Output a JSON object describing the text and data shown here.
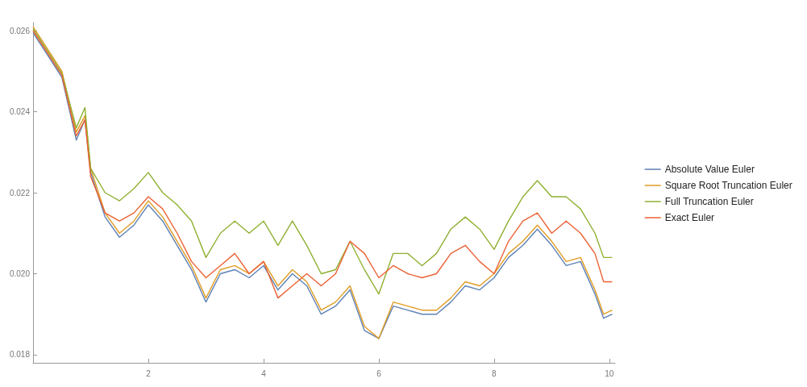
{
  "chart_data": {
    "type": "line",
    "x": [
      0,
      0.25,
      0.5,
      0.75,
      0.9,
      1,
      1.25,
      1.5,
      1.75,
      2,
      2.25,
      2.5,
      2.75,
      3,
      3.25,
      3.5,
      3.75,
      4,
      4.25,
      4.5,
      4.75,
      5,
      5.25,
      5.5,
      5.75,
      6,
      6.25,
      6.5,
      6.75,
      7,
      7.25,
      7.5,
      7.75,
      8,
      8.25,
      8.5,
      8.75,
      9,
      9.25,
      9.5,
      9.75,
      9.9,
      10.05
    ],
    "series": [
      {
        "name": "Absolute Value Euler",
        "color": "#5e81b5",
        "values": [
          0.02595,
          0.0254,
          0.02485,
          0.0233,
          0.0238,
          0.0225,
          0.0214,
          0.0209,
          0.0212,
          0.0217,
          0.0213,
          0.0207,
          0.0201,
          0.0193,
          0.02,
          0.0201,
          0.0199,
          0.0202,
          0.0196,
          0.02,
          0.0197,
          0.019,
          0.0192,
          0.0196,
          0.0186,
          0.0184,
          0.0192,
          0.0191,
          0.019,
          0.019,
          0.0193,
          0.0197,
          0.0196,
          0.0199,
          0.0204,
          0.0207,
          0.0211,
          0.0207,
          0.0202,
          0.0203,
          0.0195,
          0.0189,
          0.019
        ]
      },
      {
        "name": "Square Root Truncation Euler",
        "color": "#e19c24",
        "values": [
          0.0261,
          0.02555,
          0.025,
          0.0235,
          0.0239,
          0.0226,
          0.0215,
          0.021,
          0.0213,
          0.0218,
          0.0214,
          0.0208,
          0.0202,
          0.0194,
          0.0201,
          0.0202,
          0.02,
          0.0203,
          0.0197,
          0.0201,
          0.0198,
          0.0191,
          0.0193,
          0.0197,
          0.0187,
          0.0184,
          0.0193,
          0.0192,
          0.0191,
          0.0191,
          0.0194,
          0.0198,
          0.0197,
          0.02,
          0.0205,
          0.0208,
          0.0212,
          0.0208,
          0.0203,
          0.0204,
          0.0196,
          0.019,
          0.0191
        ]
      },
      {
        "name": "Full Truncation Euler",
        "color": "#8fb032",
        "values": [
          0.02605,
          0.0255,
          0.02495,
          0.0236,
          0.0241,
          0.0226,
          0.022,
          0.0218,
          0.0221,
          0.0225,
          0.022,
          0.0217,
          0.0213,
          0.0204,
          0.021,
          0.0213,
          0.021,
          0.0213,
          0.0207,
          0.0213,
          0.0207,
          0.02,
          0.0201,
          0.0208,
          0.0201,
          0.0195,
          0.0205,
          0.0205,
          0.0202,
          0.0205,
          0.0211,
          0.0214,
          0.0211,
          0.0206,
          0.0213,
          0.0219,
          0.0223,
          0.0219,
          0.0219,
          0.0216,
          0.021,
          0.0204,
          0.0204
        ]
      },
      {
        "name": "Exact Euler",
        "color": "#eb6235",
        "values": [
          0.026,
          0.02545,
          0.0249,
          0.0234,
          0.0238,
          0.0224,
          0.0215,
          0.0213,
          0.0215,
          0.0219,
          0.0216,
          0.021,
          0.0203,
          0.0199,
          0.0202,
          0.0205,
          0.02,
          0.0203,
          0.0194,
          0.0197,
          0.02,
          0.0197,
          0.02,
          0.0208,
          0.0205,
          0.0199,
          0.0202,
          0.02,
          0.0199,
          0.02,
          0.0205,
          0.0207,
          0.0203,
          0.02,
          0.0208,
          0.0213,
          0.0215,
          0.021,
          0.0213,
          0.021,
          0.0205,
          0.0198,
          0.0198
        ]
      }
    ],
    "xlim": [
      0,
      10.1
    ],
    "xticks": [
      2,
      4,
      6,
      8,
      10
    ],
    "ylim": [
      0.0178,
      0.0262
    ],
    "yticks": [
      {
        "value": 0.018,
        "label": "0.018"
      },
      {
        "value": 0.02,
        "label": "0.020"
      },
      {
        "value": 0.022,
        "label": "0.022"
      },
      {
        "value": 0.024,
        "label": "0.024"
      },
      {
        "value": 0.026,
        "label": "0.026"
      }
    ],
    "legend": "right",
    "grid": false,
    "marker": "none",
    "line_style": "solid"
  }
}
